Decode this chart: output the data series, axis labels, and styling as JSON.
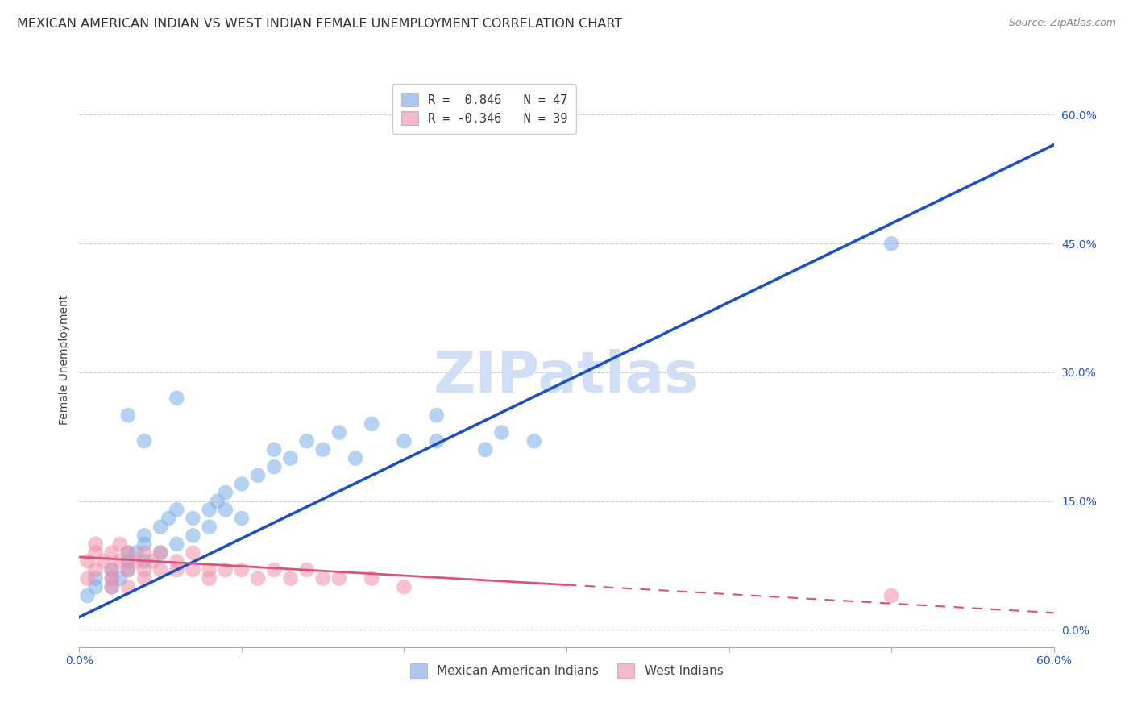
{
  "title": "MEXICAN AMERICAN INDIAN VS WEST INDIAN FEMALE UNEMPLOYMENT CORRELATION CHART",
  "source": "Source: ZipAtlas.com",
  "ylabel": "Female Unemployment",
  "watermark": "ZIPatlas",
  "right_yticks": [
    "0.0%",
    "15.0%",
    "30.0%",
    "45.0%",
    "60.0%"
  ],
  "right_ytick_vals": [
    0.0,
    0.15,
    0.3,
    0.45,
    0.6
  ],
  "xmin": 0.0,
  "xmax": 0.6,
  "ymin": -0.02,
  "ymax": 0.65,
  "legend_entries": [
    {
      "label": "R =  0.846   N = 47",
      "color": "#aec6f0"
    },
    {
      "label": "R = -0.346   N = 39",
      "color": "#f4b8c8"
    }
  ],
  "legend_label1": "Mexican American Indians",
  "legend_label2": "West Indians",
  "blue_scatter_x": [
    0.005,
    0.01,
    0.01,
    0.02,
    0.02,
    0.02,
    0.025,
    0.03,
    0.03,
    0.03,
    0.035,
    0.04,
    0.04,
    0.04,
    0.05,
    0.05,
    0.055,
    0.06,
    0.06,
    0.07,
    0.07,
    0.08,
    0.08,
    0.085,
    0.09,
    0.09,
    0.1,
    0.1,
    0.11,
    0.12,
    0.12,
    0.13,
    0.14,
    0.15,
    0.16,
    0.17,
    0.18,
    0.2,
    0.22,
    0.22,
    0.25,
    0.26,
    0.28,
    0.03,
    0.04,
    0.5,
    0.06
  ],
  "blue_scatter_y": [
    0.04,
    0.05,
    0.06,
    0.05,
    0.06,
    0.07,
    0.06,
    0.07,
    0.08,
    0.09,
    0.09,
    0.08,
    0.1,
    0.11,
    0.09,
    0.12,
    0.13,
    0.1,
    0.14,
    0.11,
    0.13,
    0.12,
    0.14,
    0.15,
    0.14,
    0.16,
    0.13,
    0.17,
    0.18,
    0.19,
    0.21,
    0.2,
    0.22,
    0.21,
    0.23,
    0.2,
    0.24,
    0.22,
    0.22,
    0.25,
    0.21,
    0.23,
    0.22,
    0.25,
    0.22,
    0.45,
    0.27
  ],
  "pink_scatter_x": [
    0.005,
    0.005,
    0.01,
    0.01,
    0.01,
    0.015,
    0.02,
    0.02,
    0.02,
    0.025,
    0.025,
    0.03,
    0.03,
    0.03,
    0.035,
    0.04,
    0.04,
    0.04,
    0.045,
    0.05,
    0.05,
    0.06,
    0.06,
    0.07,
    0.07,
    0.08,
    0.08,
    0.09,
    0.1,
    0.11,
    0.12,
    0.13,
    0.14,
    0.15,
    0.16,
    0.18,
    0.2,
    0.5,
    0.02
  ],
  "pink_scatter_y": [
    0.06,
    0.08,
    0.07,
    0.09,
    0.1,
    0.08,
    0.07,
    0.09,
    0.06,
    0.08,
    0.1,
    0.07,
    0.09,
    0.05,
    0.08,
    0.07,
    0.09,
    0.06,
    0.08,
    0.07,
    0.09,
    0.07,
    0.08,
    0.07,
    0.09,
    0.07,
    0.06,
    0.07,
    0.07,
    0.06,
    0.07,
    0.06,
    0.07,
    0.06,
    0.06,
    0.06,
    0.05,
    0.04,
    0.05
  ],
  "blue_line_x0": 0.0,
  "blue_line_x1": 0.6,
  "blue_line_y0": 0.015,
  "blue_line_y1": 0.565,
  "pink_line_x0": 0.0,
  "pink_line_x1": 0.6,
  "pink_line_y0": 0.085,
  "pink_line_y1": 0.02,
  "blue_line_color": "#1a4fcc",
  "pink_line_color": "#e0507a",
  "scatter_blue_color": "#7aaee8",
  "scatter_pink_color": "#f090a8",
  "grid_color": "#cccccc",
  "background_color": "#ffffff",
  "title_fontsize": 11.5,
  "source_fontsize": 9,
  "axis_label_fontsize": 10,
  "tick_fontsize": 10,
  "watermark_fontsize": 52,
  "watermark_color": "#d0dff5",
  "legend_fontsize": 11
}
